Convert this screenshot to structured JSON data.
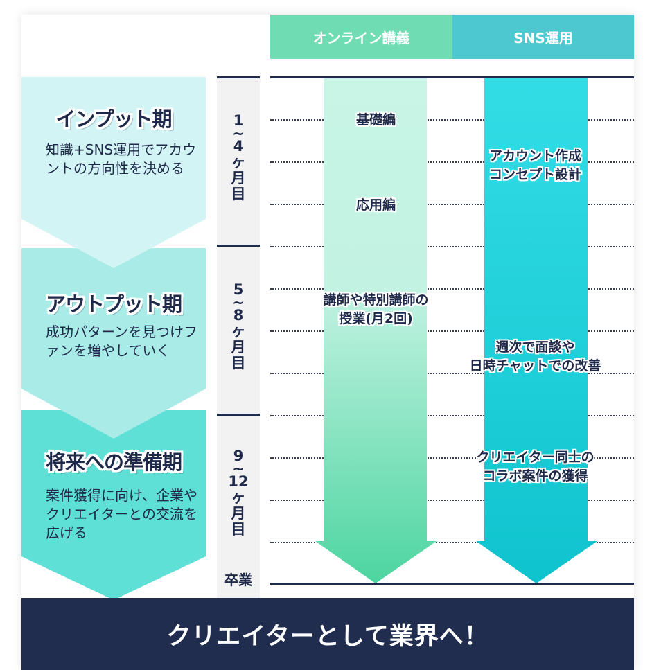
{
  "columns": {
    "online": "オンライン講義",
    "sns": "SNS運用"
  },
  "phases": [
    {
      "title": "インプット期",
      "desc": "知識+SNS運用でアカウントの方向性を決める",
      "color": "#d3f4f4"
    },
    {
      "title": "アウトプット期",
      "desc": "成功パターンを見つけファンを増やしていく",
      "color": "#a9ebe6"
    },
    {
      "title": "将来への準備期",
      "desc": "案件獲得に向け、企業やクリエイターとの交流を広げる",
      "color": "#5ee0d6"
    }
  ],
  "timeline": {
    "p1": [
      "1",
      "~",
      "4",
      "ヶ",
      "月",
      "目"
    ],
    "p2": [
      "5",
      "~",
      "8",
      "ヶ",
      "月",
      "目"
    ],
    "p3": [
      "9",
      "~",
      "12",
      "ヶ",
      "月",
      "目"
    ],
    "graduation": "卒業"
  },
  "online": {
    "basic": "基礎編",
    "applied": "応用編",
    "lectures_1": "講師や特別講師の",
    "lectures_2": "授業(月2回)"
  },
  "sns": {
    "account_1": "アカウント作成",
    "account_2": "コンセプト設計",
    "weekly_1": "週次で面談や",
    "weekly_2": "日時チャットでの改善",
    "collab_1": "クリエイター同士の",
    "collab_2": "コラボ案件の獲得"
  },
  "footer": "クリエイターとして業界へ！",
  "colors": {
    "navy": "#212d4f",
    "header_online": "#6fdcb3",
    "header_sns": "#4ec8d0",
    "online_arrow_top": "#c8f5e6",
    "online_arrow_bottom": "#52d6a1",
    "sns_arrow_top": "#2fdbe5",
    "sns_arrow_bottom": "#12c4cf"
  }
}
